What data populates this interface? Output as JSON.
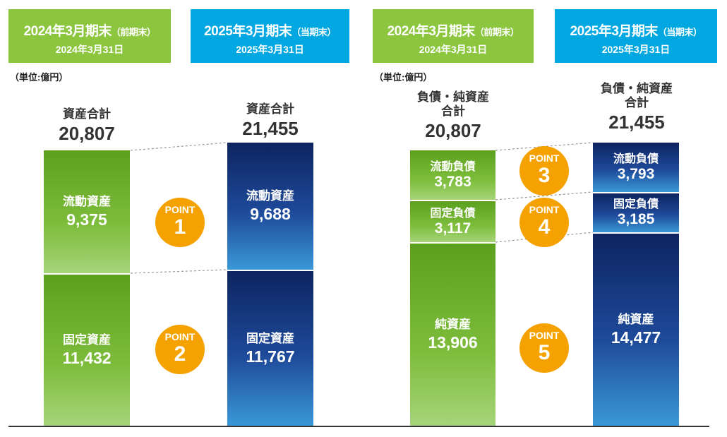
{
  "left_panel": {
    "headers": [
      {
        "title": "2024年3月期末",
        "suffix": "（前期末）",
        "date": "2024年3月31日"
      },
      {
        "title": "2025年3月期末",
        "suffix": "（当期末）",
        "date": "2025年3月31日"
      }
    ],
    "unit": "（単位:億円）"
  },
  "right_panel": {
    "headers": [
      {
        "title": "2024年3月期末",
        "suffix": "（前期末）",
        "date": "2024年3月31日"
      },
      {
        "title": "2025年3月期末",
        "suffix": "（当期末）",
        "date": "2025年3月31日"
      }
    ],
    "unit": "（単位:億円）"
  },
  "chart_data": [
    {
      "type": "bar",
      "stacked": true,
      "unit": "億円",
      "categories": [
        "2024年3月期末",
        "2025年3月期末"
      ],
      "total_label": "資産合計",
      "totals": [
        "20,807",
        "21,455"
      ],
      "series": [
        {
          "name": "流動資産",
          "values": [
            9375,
            9688
          ],
          "labels": [
            "9,375",
            "9,688"
          ]
        },
        {
          "name": "固定資産",
          "values": [
            11432,
            11767
          ],
          "labels": [
            "11,432",
            "11,767"
          ]
        }
      ],
      "points": [
        {
          "prefix": "POINT",
          "number": "1"
        },
        {
          "prefix": "POINT",
          "number": "2"
        }
      ]
    },
    {
      "type": "bar",
      "stacked": true,
      "unit": "億円",
      "categories": [
        "2024年3月期末",
        "2025年3月期末"
      ],
      "total_label_line1": "負債・純資産",
      "total_label_line2": "合計",
      "totals": [
        "20,807",
        "21,455"
      ],
      "series": [
        {
          "name": "流動負債",
          "values": [
            3783,
            3793
          ],
          "labels": [
            "3,783",
            "3,793"
          ]
        },
        {
          "name": "固定負債",
          "values": [
            3117,
            3185
          ],
          "labels": [
            "3,117",
            "3,185"
          ]
        },
        {
          "name": "純資産",
          "values": [
            13906,
            14477
          ],
          "labels": [
            "13,906",
            "14,477"
          ]
        }
      ],
      "points": [
        {
          "prefix": "POINT",
          "number": "3"
        },
        {
          "prefix": "POINT",
          "number": "4"
        },
        {
          "prefix": "POINT",
          "number": "5"
        }
      ]
    }
  ],
  "colors": {
    "prev_header": "#8cc63f",
    "curr_header": "#00a7e1",
    "prev_bar": "#6fb22f",
    "curr_bar": "#1e4a9a",
    "point_badge": "#f5a200"
  }
}
